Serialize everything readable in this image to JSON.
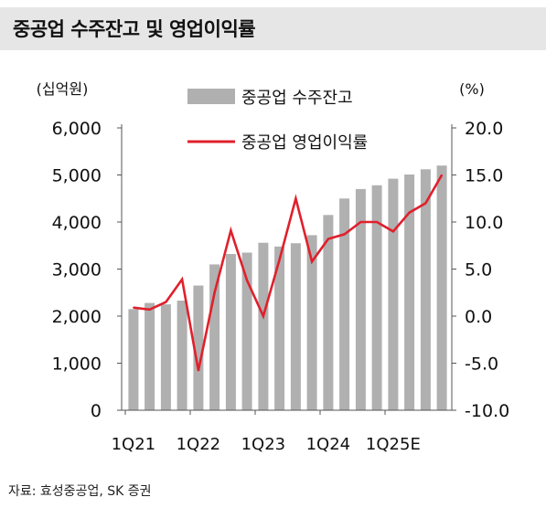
{
  "title": "중공업 수주잔고 및 영업이익률",
  "source": "자료: 효성중공업, SK 증권",
  "chart_data": {
    "type": "bar",
    "combo": "bar+line",
    "left_axis": {
      "unit_label": "(십억원)",
      "ylim": [
        0,
        6000
      ],
      "ticks": [
        "0",
        "1,000",
        "2,000",
        "3,000",
        "4,000",
        "5,000",
        "6,000"
      ],
      "tick_values": [
        0,
        1000,
        2000,
        3000,
        4000,
        5000,
        6000
      ]
    },
    "right_axis": {
      "unit_label": "(%)",
      "ylim": [
        -10,
        20
      ],
      "ticks": [
        "-10.0",
        "-5.0",
        "0.0",
        "5.0",
        "10.0",
        "15.0",
        "20.0"
      ],
      "tick_values": [
        -10,
        -5,
        0,
        5,
        10,
        15,
        20
      ]
    },
    "x_tick_labels": [
      {
        "index": 0,
        "label": "1Q21"
      },
      {
        "index": 4,
        "label": "1Q22"
      },
      {
        "index": 8,
        "label": "1Q23"
      },
      {
        "index": 12,
        "label": "1Q24"
      },
      {
        "index": 16,
        "label": "1Q25E"
      }
    ],
    "categories": [
      "1Q21",
      "2Q21",
      "3Q21",
      "4Q21",
      "1Q22",
      "2Q22",
      "3Q22",
      "4Q22",
      "1Q23",
      "2Q23",
      "3Q23",
      "4Q23",
      "1Q24",
      "2Q24",
      "3Q24",
      "4Q24",
      "1Q25E",
      "2Q25E",
      "3Q25E",
      "4Q25E"
    ],
    "series": [
      {
        "name": "중공업 수주잔고",
        "type": "bar",
        "axis": "left",
        "color": "#b0b0b0",
        "values": [
          2150,
          2280,
          2250,
          2330,
          2650,
          3100,
          3320,
          3350,
          3560,
          3480,
          3550,
          3720,
          4150,
          4500,
          4700,
          4780,
          4920,
          5010,
          5120,
          5200
        ]
      },
      {
        "name": "중공업 영업이익률",
        "type": "line",
        "axis": "right",
        "color": "#e0202c",
        "values": [
          0.9,
          0.7,
          1.5,
          3.9,
          -5.8,
          2.5,
          9.1,
          3.8,
          0.0,
          6.0,
          12.5,
          5.8,
          8.2,
          8.7,
          10.0,
          10.0,
          9.0,
          11.0,
          12.0,
          15.0
        ]
      }
    ],
    "legend_position": "top-center",
    "grid": false
  }
}
